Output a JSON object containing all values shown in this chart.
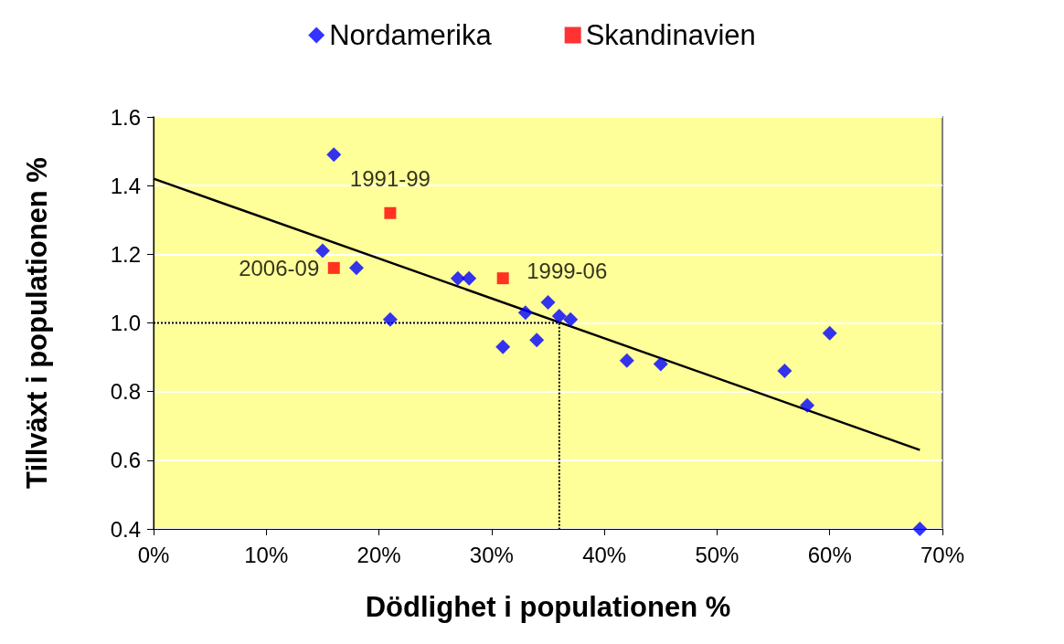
{
  "chart_data": {
    "type": "scatter",
    "xlabel": "Dödlighet i populationen %",
    "ylabel": "Tillväxt i populationen %",
    "xlim": [
      0,
      70
    ],
    "ylim": [
      0.4,
      1.6
    ],
    "xticks": [
      {
        "value": 0,
        "label": "0%"
      },
      {
        "value": 10,
        "label": "10%"
      },
      {
        "value": 20,
        "label": "20%"
      },
      {
        "value": 30,
        "label": "30%"
      },
      {
        "value": 40,
        "label": "40%"
      },
      {
        "value": 50,
        "label": "50%"
      },
      {
        "value": 60,
        "label": "60%"
      },
      {
        "value": 70,
        "label": "70%"
      }
    ],
    "yticks": [
      {
        "value": 0.4,
        "label": "0.4"
      },
      {
        "value": 0.6,
        "label": "0.6"
      },
      {
        "value": 0.8,
        "label": "0.8"
      },
      {
        "value": 1,
        "label": "1.0"
      },
      {
        "value": 1.2,
        "label": "1.2"
      },
      {
        "value": 1.4,
        "label": "1.4"
      },
      {
        "value": 1.6,
        "label": "1.6"
      }
    ],
    "grid": "y",
    "legend": "top",
    "series": [
      {
        "name": "Nordamerika",
        "color": "#0000ff",
        "marker": "diamond",
        "x": [
          16,
          15,
          18,
          21,
          27,
          28,
          31,
          33,
          34,
          35,
          36,
          37,
          42,
          45,
          56,
          58,
          60,
          68
        ],
        "values": [
          1.49,
          1.21,
          1.16,
          1.01,
          1.13,
          1.13,
          0.93,
          1.03,
          0.95,
          1.06,
          1.02,
          1.01,
          0.89,
          0.88,
          0.86,
          0.76,
          0.97,
          0.4
        ]
      },
      {
        "name": "Skandinavien",
        "color": "#ff0000",
        "marker": "square",
        "x": [
          21,
          16,
          31
        ],
        "values": [
          1.32,
          1.16,
          1.13
        ]
      },
      {
        "type": "line",
        "color": "#000000",
        "marker": "none",
        "line_style": "solid",
        "x": [
          0,
          68
        ],
        "values": [
          1.42,
          0.63
        ]
      },
      {
        "type": "line",
        "color": "#000000",
        "marker": "none",
        "line_style": "dotted",
        "x": [
          0,
          36,
          36
        ],
        "values": [
          1,
          1,
          0.4
        ]
      }
    ],
    "annotations": [
      {
        "text": "1991-99",
        "x": 21,
        "y": 1.32
      },
      {
        "text": "2006-09",
        "x": 16,
        "y": 1.16
      },
      {
        "text": "1999-06",
        "x": 31,
        "y": 1.13
      }
    ]
  }
}
